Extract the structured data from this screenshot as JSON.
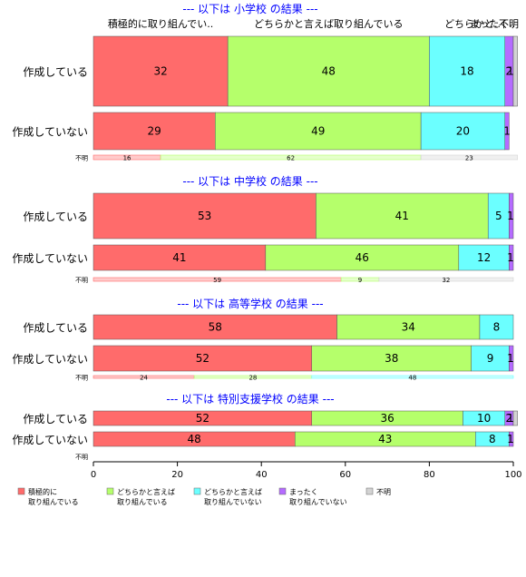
{
  "chart_data": {
    "type": "bar",
    "orientation": "horizontal",
    "stacked": true,
    "percent_axis": {
      "ticks": [
        0,
        20,
        40,
        60,
        80,
        100
      ],
      "xlim": [
        0,
        100
      ]
    },
    "top_labels": [
      "積極的に取り組んでい..",
      "どちらかと言えば取り組んでいる",
      "どちらかと..",
      "まったく..",
      "不明"
    ],
    "legend": {
      "placement": "bottom",
      "items": [
        {
          "label": "積極的に\n取り組んでいる",
          "color": "#ff6b6b"
        },
        {
          "label": "どちらかと言えば\n取り組んでいる",
          "color": "#b5ff6b"
        },
        {
          "label": "どちらかと言えば\n取り組んでいない",
          "color": "#6bffff"
        },
        {
          "label": "まったく\n取り組んでいない",
          "color": "#b56bff"
        },
        {
          "label": "不明",
          "color": "#d3d3d3"
        }
      ]
    },
    "panels": [
      {
        "title": "--- 以下は 小学校 の結果 ---",
        "rows": [
          {
            "label": "作成している",
            "values": [
              32,
              48,
              18,
              2,
              1
            ]
          },
          {
            "label": "作成していない",
            "values": [
              29,
              49,
              20,
              1,
              0
            ]
          },
          {
            "label": "不明",
            "values": [
              16,
              62,
              0,
              0,
              23
            ]
          }
        ]
      },
      {
        "title": "--- 以下は 中学校 の結果 ---",
        "rows": [
          {
            "label": "作成している",
            "values": [
              53,
              41,
              5,
              1,
              0
            ]
          },
          {
            "label": "作成していない",
            "values": [
              41,
              46,
              12,
              1,
              0
            ]
          },
          {
            "label": "不明",
            "values": [
              59,
              9,
              0,
              0,
              32
            ]
          }
        ]
      },
      {
        "title": "--- 以下は 高等学校 の結果 ---",
        "rows": [
          {
            "label": "作成している",
            "values": [
              58,
              34,
              8,
              0,
              0
            ]
          },
          {
            "label": "作成していない",
            "values": [
              52,
              38,
              9,
              1,
              0
            ]
          },
          {
            "label": "不明",
            "values": [
              24,
              28,
              48,
              0,
              0
            ]
          }
        ]
      },
      {
        "title": "--- 以下は 特別支援学校 の結果 ---",
        "rows": [
          {
            "label": "作成している",
            "values": [
              52,
              36,
              10,
              2,
              1
            ]
          },
          {
            "label": "作成していない",
            "values": [
              48,
              43,
              8,
              1,
              0
            ]
          },
          {
            "label": "不明",
            "values": []
          }
        ]
      }
    ]
  }
}
